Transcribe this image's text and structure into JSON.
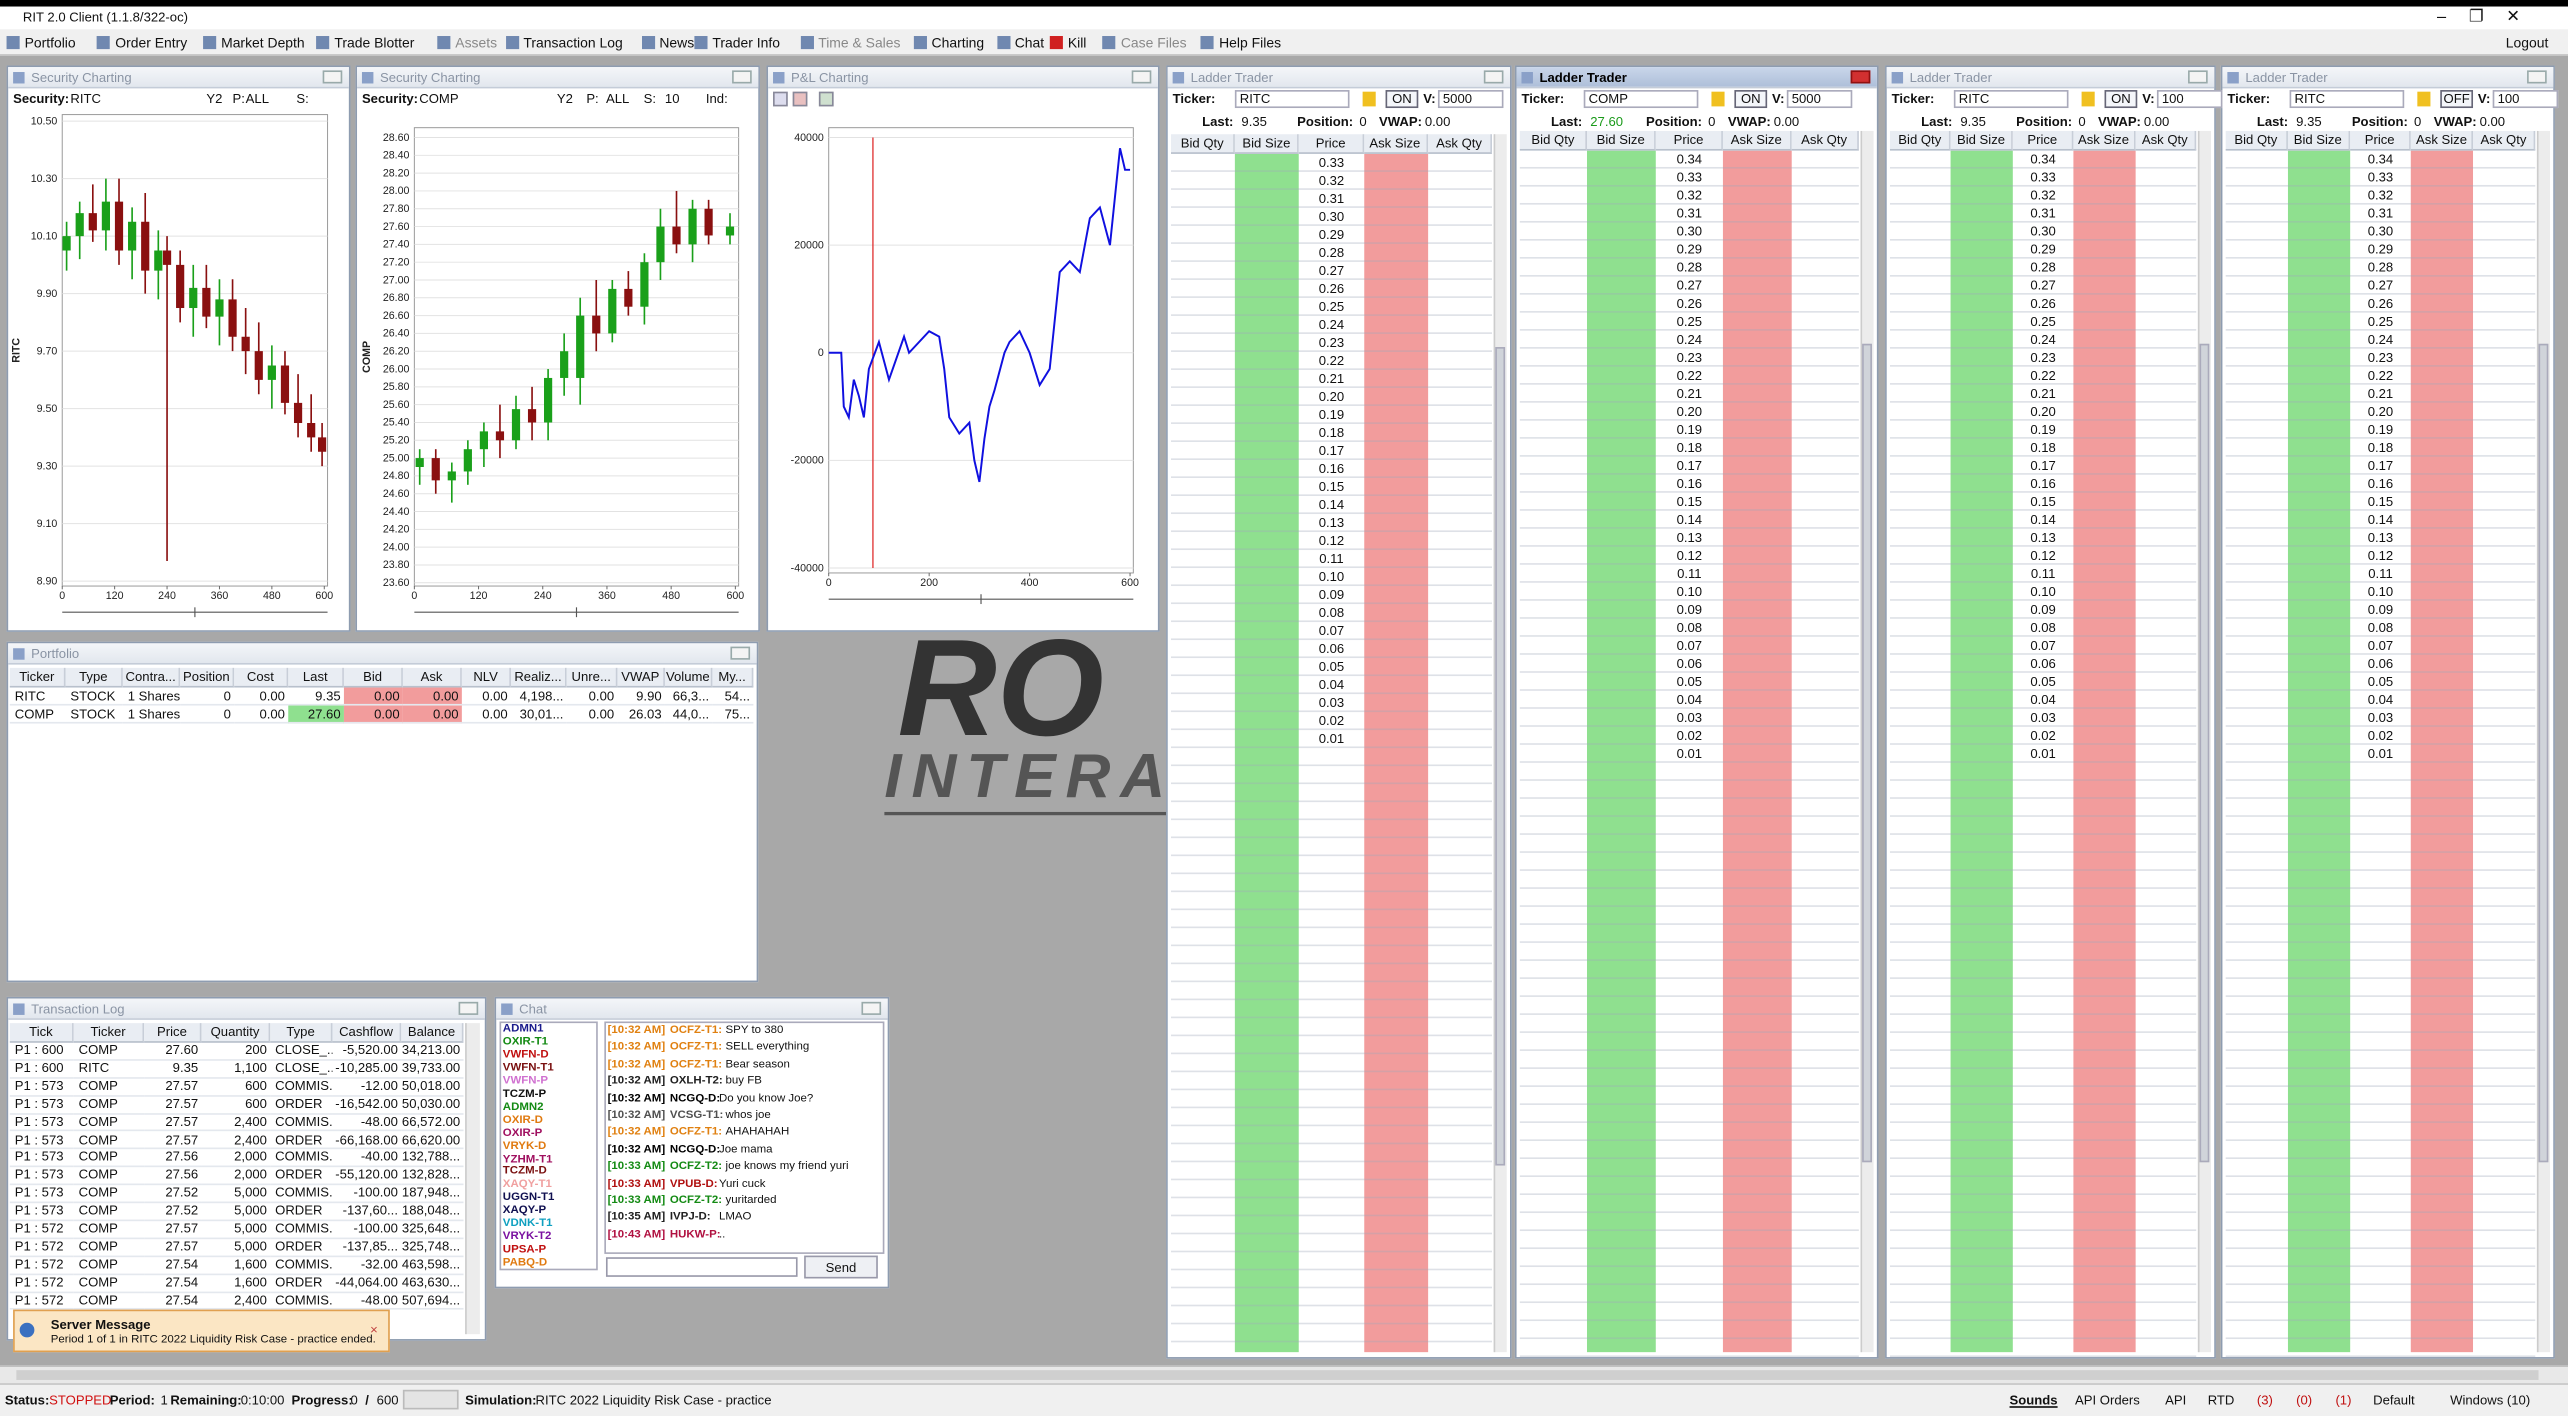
{
  "window_title": "RIT 2.0 Client (1.1.8/322-oc)",
  "menu": [
    "Portfolio",
    "Order Entry",
    "Market Depth",
    "Trade Blotter",
    "Assets",
    "Transaction Log",
    "News",
    "Trader Info",
    "Time & Sales",
    "Charting",
    "Chat",
    "Kill",
    "Case Files",
    "Help Files"
  ],
  "logout": "Logout",
  "logo": [
    "RO",
    "INTERAC"
  ],
  "charts": [
    {
      "title": "Security Charting",
      "toolbar": [
        "Security:",
        "RITC",
        "Y2",
        "P:",
        "ALL",
        "S:"
      ],
      "y_label": "RITC",
      "ylim": [
        8.9,
        10.5
      ],
      "yticks": [
        {
          "value": 10.5,
          "label": "10.50"
        },
        {
          "value": 10.3,
          "label": "10.30"
        },
        {
          "value": 10.1,
          "label": "10.10"
        },
        {
          "value": 9.9,
          "label": "9.90"
        },
        {
          "value": 9.7,
          "label": "9.70"
        },
        {
          "value": 9.5,
          "label": "9.50"
        },
        {
          "value": 9.3,
          "label": "9.30"
        },
        {
          "value": 9.1,
          "label": "9.10"
        },
        {
          "value": 8.9,
          "label": "8.90"
        }
      ],
      "xlim": [
        0,
        600
      ],
      "xticks": [
        0,
        120,
        240,
        360,
        480,
        600
      ],
      "candles": {
        "x": [
          10,
          40,
          70,
          100,
          130,
          160,
          190,
          220,
          240,
          270,
          300,
          330,
          360,
          390,
          420,
          450,
          480,
          510,
          540,
          570,
          595
        ],
        "open": [
          10.05,
          10.1,
          10.18,
          10.12,
          10.22,
          10.05,
          10.15,
          9.98,
          10.05,
          10.0,
          9.85,
          9.92,
          9.82,
          9.88,
          9.75,
          9.7,
          9.6,
          9.65,
          9.52,
          9.45,
          9.4
        ],
        "high": [
          10.15,
          10.22,
          10.28,
          10.3,
          10.3,
          10.2,
          10.25,
          10.12,
          10.1,
          10.05,
          10.0,
          10.0,
          9.95,
          9.95,
          9.85,
          9.8,
          9.72,
          9.7,
          9.62,
          9.55,
          9.45
        ],
        "low": [
          9.98,
          10.02,
          10.08,
          10.05,
          10.0,
          9.95,
          9.9,
          9.88,
          8.97,
          9.8,
          9.75,
          9.78,
          9.72,
          9.7,
          9.62,
          9.55,
          9.5,
          9.48,
          9.4,
          9.35,
          9.3
        ],
        "close": [
          10.1,
          10.18,
          10.12,
          10.22,
          10.05,
          10.15,
          9.98,
          10.05,
          10.0,
          9.85,
          9.92,
          9.82,
          9.88,
          9.75,
          9.7,
          9.6,
          9.65,
          9.52,
          9.45,
          9.4,
          9.35
        ]
      }
    },
    {
      "title": "Security Charting",
      "toolbar": [
        "Security:",
        "COMP",
        "Y2",
        "P:",
        "ALL",
        "S:",
        "10",
        "Ind:"
      ],
      "y_label": "COMP",
      "ylim": [
        23.6,
        28.6
      ],
      "yticks": [
        {
          "value": 28.6,
          "label": "28.60"
        },
        {
          "value": 28.4,
          "label": "28.40"
        },
        {
          "value": 28.2,
          "label": "28.20"
        },
        {
          "value": 28.0,
          "label": "28.00"
        },
        {
          "value": 27.8,
          "label": "27.80"
        },
        {
          "value": 27.6,
          "label": "27.60"
        },
        {
          "value": 27.4,
          "label": "27.40"
        },
        {
          "value": 27.2,
          "label": "27.20"
        },
        {
          "value": 27.0,
          "label": "27.00"
        },
        {
          "value": 26.8,
          "label": "26.80"
        },
        {
          "value": 26.6,
          "label": "26.60"
        },
        {
          "value": 26.4,
          "label": "26.40"
        },
        {
          "value": 26.2,
          "label": "26.20"
        },
        {
          "value": 26.0,
          "label": "26.00"
        },
        {
          "value": 25.8,
          "label": "25.80"
        },
        {
          "value": 25.6,
          "label": "25.60"
        },
        {
          "value": 25.4,
          "label": "25.40"
        },
        {
          "value": 25.2,
          "label": "25.20"
        },
        {
          "value": 25.0,
          "label": "25.00"
        },
        {
          "value": 24.8,
          "label": "24.80"
        },
        {
          "value": 24.6,
          "label": "24.60"
        },
        {
          "value": 24.4,
          "label": "24.40"
        },
        {
          "value": 24.2,
          "label": "24.20"
        },
        {
          "value": 24.0,
          "label": "24.00"
        },
        {
          "value": 23.8,
          "label": "23.80"
        },
        {
          "value": 23.6,
          "label": "23.60"
        }
      ],
      "xlim": [
        0,
        600
      ],
      "xticks": [
        0,
        120,
        240,
        360,
        480,
        600
      ],
      "candles": {
        "x": [
          10,
          40,
          70,
          100,
          130,
          160,
          190,
          220,
          250,
          280,
          310,
          340,
          370,
          400,
          430,
          460,
          490,
          520,
          550,
          590
        ],
        "open": [
          24.9,
          25.0,
          24.75,
          24.85,
          25.1,
          25.3,
          25.2,
          25.55,
          25.4,
          25.9,
          25.9,
          26.6,
          26.4,
          26.9,
          26.7,
          27.2,
          27.6,
          27.4,
          27.8,
          27.5
        ],
        "high": [
          25.1,
          25.1,
          24.95,
          25.2,
          25.4,
          25.6,
          25.7,
          25.8,
          26.0,
          26.4,
          26.8,
          27.0,
          27.0,
          27.1,
          27.3,
          27.8,
          28.0,
          27.9,
          27.9,
          27.75
        ],
        "low": [
          24.7,
          24.6,
          24.5,
          24.7,
          24.9,
          25.0,
          25.1,
          25.2,
          25.2,
          25.7,
          25.6,
          26.2,
          26.3,
          26.6,
          26.5,
          27.0,
          27.3,
          27.2,
          27.4,
          27.4
        ],
        "close": [
          25.0,
          24.75,
          24.85,
          25.1,
          25.3,
          25.2,
          25.55,
          25.4,
          25.9,
          26.2,
          26.6,
          26.4,
          26.9,
          26.7,
          27.2,
          27.6,
          27.4,
          27.8,
          27.5,
          27.6
        ]
      }
    }
  ],
  "pnl_chart": {
    "title": "P&L Charting",
    "ylim": [
      -40000,
      40000
    ],
    "yticks": [
      40000,
      20000,
      0,
      -20000,
      -40000
    ],
    "xlim": [
      0,
      600
    ],
    "xticks": [
      0,
      200,
      400,
      600
    ],
    "color": "#1010e0",
    "x": [
      0,
      25,
      30,
      40,
      50,
      60,
      70,
      80,
      100,
      120,
      150,
      160,
      200,
      220,
      230,
      240,
      260,
      280,
      290,
      300,
      310,
      320,
      330,
      350,
      360,
      380,
      400,
      420,
      440,
      460,
      480,
      500,
      520,
      540,
      560,
      580,
      590,
      600
    ],
    "values": [
      0,
      0,
      -10000,
      -12000,
      -5000,
      -8000,
      -12000,
      -3000,
      2000,
      -5000,
      3000,
      0,
      4000,
      3000,
      -3000,
      -12000,
      -15000,
      -13000,
      -20000,
      -24000,
      -16000,
      -10000,
      -7000,
      0,
      2000,
      4000,
      0,
      -6000,
      -3000,
      15000,
      17000,
      15000,
      25000,
      27000,
      20000,
      38000,
      34000,
      34000
    ]
  },
  "ladder_title": "Ladder Trader",
  "ladder_labels": {
    "ticker": "Ticker:",
    "v": "V:",
    "last": "Last:",
    "position": "Position:",
    "vwap": "VWAP:"
  },
  "ladder_columns": [
    "Bid Qty",
    "Bid Size",
    "Price",
    "Ask Size",
    "Ask Qty"
  ],
  "ladders": [
    {
      "ticker": "RITC",
      "state": "ON",
      "volume": "5000",
      "last": "9.35",
      "position": "0",
      "vwap": "0.00",
      "prices": [
        "0.33",
        "0.32",
        "0.31",
        "0.30",
        "0.29",
        "0.28",
        "0.27",
        "0.26",
        "0.25",
        "0.24",
        "0.23",
        "0.22",
        "0.21",
        "0.20",
        "0.19",
        "0.18",
        "0.17",
        "0.16",
        "0.15",
        "0.14",
        "0.13",
        "0.12",
        "0.11",
        "0.10",
        "0.09",
        "0.08",
        "0.07",
        "0.06",
        "0.05",
        "0.04",
        "0.03",
        "0.02",
        "0.01"
      ]
    },
    {
      "ticker": "COMP",
      "state": "ON",
      "volume": "5000",
      "last": "27.60",
      "position": "0",
      "vwap": "0.00",
      "prices": [
        "0.34",
        "0.33",
        "0.32",
        "0.31",
        "0.30",
        "0.29",
        "0.28",
        "0.27",
        "0.26",
        "0.25",
        "0.24",
        "0.23",
        "0.22",
        "0.21",
        "0.20",
        "0.19",
        "0.18",
        "0.17",
        "0.16",
        "0.15",
        "0.14",
        "0.13",
        "0.12",
        "0.11",
        "0.10",
        "0.09",
        "0.08",
        "0.07",
        "0.06",
        "0.05",
        "0.04",
        "0.03",
        "0.02",
        "0.01"
      ]
    },
    {
      "ticker": "RITC",
      "state": "ON",
      "volume": "100",
      "last": "9.35",
      "position": "0",
      "vwap": "0.00",
      "prices": [
        "0.34",
        "0.33",
        "0.32",
        "0.31",
        "0.30",
        "0.29",
        "0.28",
        "0.27",
        "0.26",
        "0.25",
        "0.24",
        "0.23",
        "0.22",
        "0.21",
        "0.20",
        "0.19",
        "0.18",
        "0.17",
        "0.16",
        "0.15",
        "0.14",
        "0.13",
        "0.12",
        "0.11",
        "0.10",
        "0.09",
        "0.08",
        "0.07",
        "0.06",
        "0.05",
        "0.04",
        "0.03",
        "0.02",
        "0.01"
      ]
    },
    {
      "ticker": "RITC",
      "state": "OFF",
      "volume": "100",
      "last": "9.35",
      "position": "0",
      "vwap": "0.00",
      "prices": [
        "0.34",
        "0.33",
        "0.32",
        "0.31",
        "0.30",
        "0.29",
        "0.28",
        "0.27",
        "0.26",
        "0.25",
        "0.24",
        "0.23",
        "0.22",
        "0.21",
        "0.20",
        "0.19",
        "0.18",
        "0.17",
        "0.16",
        "0.15",
        "0.14",
        "0.13",
        "0.12",
        "0.11",
        "0.10",
        "0.09",
        "0.08",
        "0.07",
        "0.06",
        "0.05",
        "0.04",
        "0.03",
        "0.02",
        "0.01"
      ]
    }
  ],
  "portfolio": {
    "title": "Portfolio",
    "columns": [
      "Ticker",
      "Type",
      "Contra...",
      "Position",
      "Cost",
      "Last",
      "Bid",
      "Ask",
      "NLV",
      "Realiz...",
      "Unre...",
      "VWAP",
      "Volume",
      "My..."
    ],
    "rows": [
      [
        "RITC",
        "STOCK",
        "1 Shares",
        "0",
        "0.00",
        "9.35",
        "0.00",
        "0.00",
        "0.00",
        "4,198...",
        "0.00",
        "9.90",
        "66,3...",
        "54..."
      ],
      [
        "COMP",
        "STOCK",
        "1 Shares",
        "0",
        "0.00",
        "27.60",
        "0.00",
        "0.00",
        "0.00",
        "30,01...",
        "0.00",
        "26.03",
        "44,0...",
        "75..."
      ]
    ]
  },
  "transaction_log": {
    "title": "Transaction Log",
    "columns": [
      "Tick",
      "Ticker",
      "Price",
      "Quantity",
      "Type",
      "Cashflow",
      "Balance"
    ],
    "rows": [
      [
        "P1 : 600",
        "COMP",
        "27.60",
        "200",
        "CLOSE_...",
        "-5,520.00",
        "34,213.00"
      ],
      [
        "P1 : 600",
        "RITC",
        "9.35",
        "1,100",
        "CLOSE_...",
        "-10,285.00",
        "39,733.00"
      ],
      [
        "P1 : 573",
        "COMP",
        "27.57",
        "600",
        "COMMIS...",
        "-12.00",
        "50,018.00"
      ],
      [
        "P1 : 573",
        "COMP",
        "27.57",
        "600",
        "ORDER",
        "-16,542.00",
        "50,030.00"
      ],
      [
        "P1 : 573",
        "COMP",
        "27.57",
        "2,400",
        "COMMIS...",
        "-48.00",
        "66,572.00"
      ],
      [
        "P1 : 573",
        "COMP",
        "27.57",
        "2,400",
        "ORDER",
        "-66,168.00",
        "66,620.00"
      ],
      [
        "P1 : 573",
        "COMP",
        "27.56",
        "2,000",
        "COMMIS...",
        "-40.00",
        "132,788..."
      ],
      [
        "P1 : 573",
        "COMP",
        "27.56",
        "2,000",
        "ORDER",
        "-55,120.00",
        "132,828..."
      ],
      [
        "P1 : 573",
        "COMP",
        "27.52",
        "5,000",
        "COMMIS...",
        "-100.00",
        "187,948..."
      ],
      [
        "P1 : 573",
        "COMP",
        "27.52",
        "5,000",
        "ORDER",
        "-137,60...",
        "188,048..."
      ],
      [
        "P1 : 572",
        "COMP",
        "27.57",
        "5,000",
        "COMMIS...",
        "-100.00",
        "325,648..."
      ],
      [
        "P1 : 572",
        "COMP",
        "27.57",
        "5,000",
        "ORDER",
        "-137,85...",
        "325,748..."
      ],
      [
        "P1 : 572",
        "COMP",
        "27.54",
        "1,600",
        "COMMIS...",
        "-32.00",
        "463,598..."
      ],
      [
        "P1 : 572",
        "COMP",
        "27.54",
        "1,600",
        "ORDER",
        "-44,064.00",
        "463,630..."
      ],
      [
        "P1 : 572",
        "COMP",
        "27.54",
        "2,400",
        "COMMIS...",
        "-48.00",
        "507,694..."
      ]
    ]
  },
  "chat": {
    "title": "Chat",
    "send": "Send",
    "users": [
      {
        "name": "ADMN1",
        "color": "#1a1a8c"
      },
      {
        "name": "OXIR-T1",
        "color": "#138a13"
      },
      {
        "name": "VWFN-D",
        "color": "#c01010"
      },
      {
        "name": "VWFN-T1",
        "color": "#7a1010"
      },
      {
        "name": "VWFN-P",
        "color": "#d070d0"
      },
      {
        "name": "TCZM-P",
        "color": "#101010"
      },
      {
        "name": "ADMN2",
        "color": "#138a13"
      },
      {
        "name": "OXIR-D",
        "color": "#e07a10"
      },
      {
        "name": "OXIR-P",
        "color": "#a01060"
      },
      {
        "name": "VRYK-D",
        "color": "#e07a10"
      },
      {
        "name": "YZHM-T1",
        "color": "#a01060"
      },
      {
        "name": "TCZM-D",
        "color": "#7a1010"
      },
      {
        "name": "XAQY-T1",
        "color": "#f0a0a0"
      },
      {
        "name": "UGGN-T1",
        "color": "#101050"
      },
      {
        "name": "XAQY-P",
        "color": "#101050"
      },
      {
        "name": "VDNK-T1",
        "color": "#10a0c0"
      },
      {
        "name": "VRYK-T2",
        "color": "#7a10a0"
      },
      {
        "name": "UPSA-P",
        "color": "#c01010"
      },
      {
        "name": "PABQ-D",
        "color": "#e07a10"
      }
    ],
    "messages": [
      {
        "time": "[10:32 AM]",
        "user": "OCFZ-T1:",
        "text": "SPY to 380",
        "color": "#e08010"
      },
      {
        "time": "[10:32 AM]",
        "user": "OCFZ-T1:",
        "text": "SELL everything",
        "color": "#e08010"
      },
      {
        "time": "[10:32 AM]",
        "user": "OCFZ-T1:",
        "text": "Bear season",
        "color": "#e08010"
      },
      {
        "time": "[10:32 AM]",
        "user": "OXLH-T2:",
        "text": "buy FB",
        "color": "#202020"
      },
      {
        "time": "[10:32 AM]",
        "user": "NCGQ-D:",
        "text": "Do you know Joe?",
        "color": "#000000"
      },
      {
        "time": "[10:32 AM]",
        "user": "VCSG-T1:",
        "text": "whos joe",
        "color": "#505050"
      },
      {
        "time": "[10:32 AM]",
        "user": "OCFZ-T1:",
        "text": "AHAHAHAH",
        "color": "#e08010"
      },
      {
        "time": "[10:32 AM]",
        "user": "NCGQ-D:",
        "text": "Joe mama",
        "color": "#000000"
      },
      {
        "time": "[10:33 AM]",
        "user": "OCFZ-T2:",
        "text": "joe knows my friend yuri",
        "color": "#138a13"
      },
      {
        "time": "[10:33 AM]",
        "user": "VPUB-D:",
        "text": "Yuri cuck",
        "color": "#b01010"
      },
      {
        "time": "[10:33 AM]",
        "user": "OCFZ-T2:",
        "text": "yuritarded",
        "color": "#138a13"
      },
      {
        "time": "[10:35 AM]",
        "user": "IVPJ-D:",
        "text": "LMAO",
        "color": "#202020"
      },
      {
        "time": "[10:43 AM]",
        "user": "HUKW-P:",
        "text": "..",
        "color": "#b01040"
      }
    ]
  },
  "toast": {
    "title": "Server Message",
    "text": "Period 1 of 1 in RITC 2022 Liquidity Risk Case - practice ended."
  },
  "status": {
    "items": [
      "Status:",
      "STOPPED",
      "Period:",
      "1",
      "Remaining:",
      "0:10:00",
      "Progress:",
      "0",
      "/",
      "600",
      "Simulation:",
      "RITC 2022 Liquidity Risk Case - practice"
    ],
    "right": [
      "Sounds",
      "API Orders",
      "API",
      "RTD",
      "(3)",
      "(0)",
      "(1)",
      "Default",
      "Windows (10)"
    ]
  }
}
